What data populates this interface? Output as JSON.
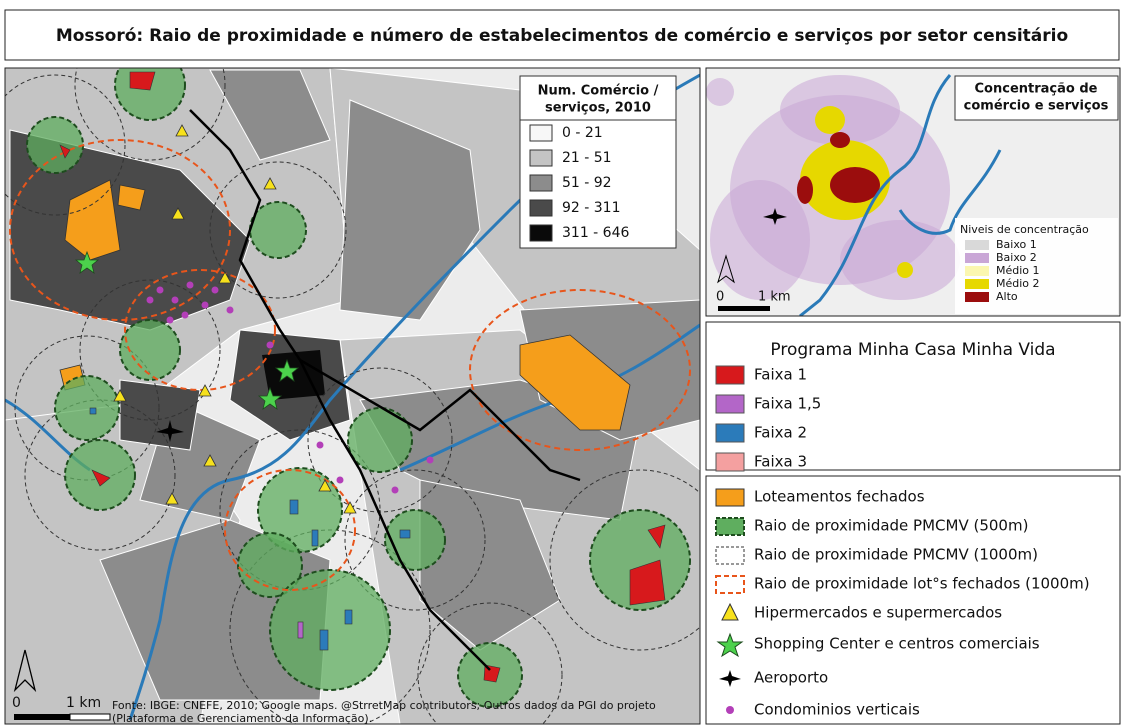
{
  "header": {
    "title": "Mossoró: Raio de proximidade e número de estabelecimentos de comércio e serviços por setor censitário"
  },
  "map": {
    "legend": {
      "title": [
        "Num. Comércio /",
        "serviços, 2010"
      ],
      "items": [
        {
          "label": "0 - 21",
          "color": "#f7f7f7"
        },
        {
          "label": "21 - 51",
          "color": "#c4c4c4"
        },
        {
          "label": "51 - 92",
          "color": "#8c8c8c"
        },
        {
          "label": "92 - 311",
          "color": "#4a4a4a"
        },
        {
          "label": "311 - 646",
          "color": "#0a0a0a"
        }
      ]
    },
    "scale": [
      "0",
      "1 km"
    ],
    "source": [
      "Fonte: IBGE: CNEFE, 2010; Google maps. @StrretMap contributors; Outros dados da PGI do projeto",
      "(Plataforma de Gerenciamento da Informação)."
    ]
  },
  "inset": {
    "title": [
      "Concentração de",
      "comércio e serviços"
    ],
    "legend": {
      "title": "Niveis de concentração",
      "items": [
        {
          "label": "Baixo 1",
          "color": "#d9d9d9"
        },
        {
          "label": "Baixo 2",
          "color": "#c9a6d6"
        },
        {
          "label": "Médio 1",
          "color": "#fbf7b0"
        },
        {
          "label": "Médio 2",
          "color": "#e6d800"
        },
        {
          "label": "Alto",
          "color": "#9b0d0d"
        }
      ]
    },
    "scale": [
      "0",
      "1 km"
    ]
  },
  "pmcmv_legend": {
    "title": "Programa Minha Casa Minha Vida",
    "items": [
      {
        "label": "Faixa 1",
        "color": "#d7191c"
      },
      {
        "label": "Faixa 1,5",
        "color": "#b366c8"
      },
      {
        "label": "Faixa 2",
        "color": "#2b7bba"
      },
      {
        "label": "Faixa 3",
        "color": "#f4a0a0"
      }
    ]
  },
  "other_legend": {
    "items": [
      "Loteamentos fechados",
      "Raio de proximidade PMCMV (500m)",
      "Raio de proximidade PMCMV (1000m)",
      "Raio de proximidade lot°s fechados (1000m)",
      "Hipermercados e supermercados",
      "Shopping Center e centros comerciais",
      "Aeroporto",
      "Condominios verticais"
    ]
  }
}
